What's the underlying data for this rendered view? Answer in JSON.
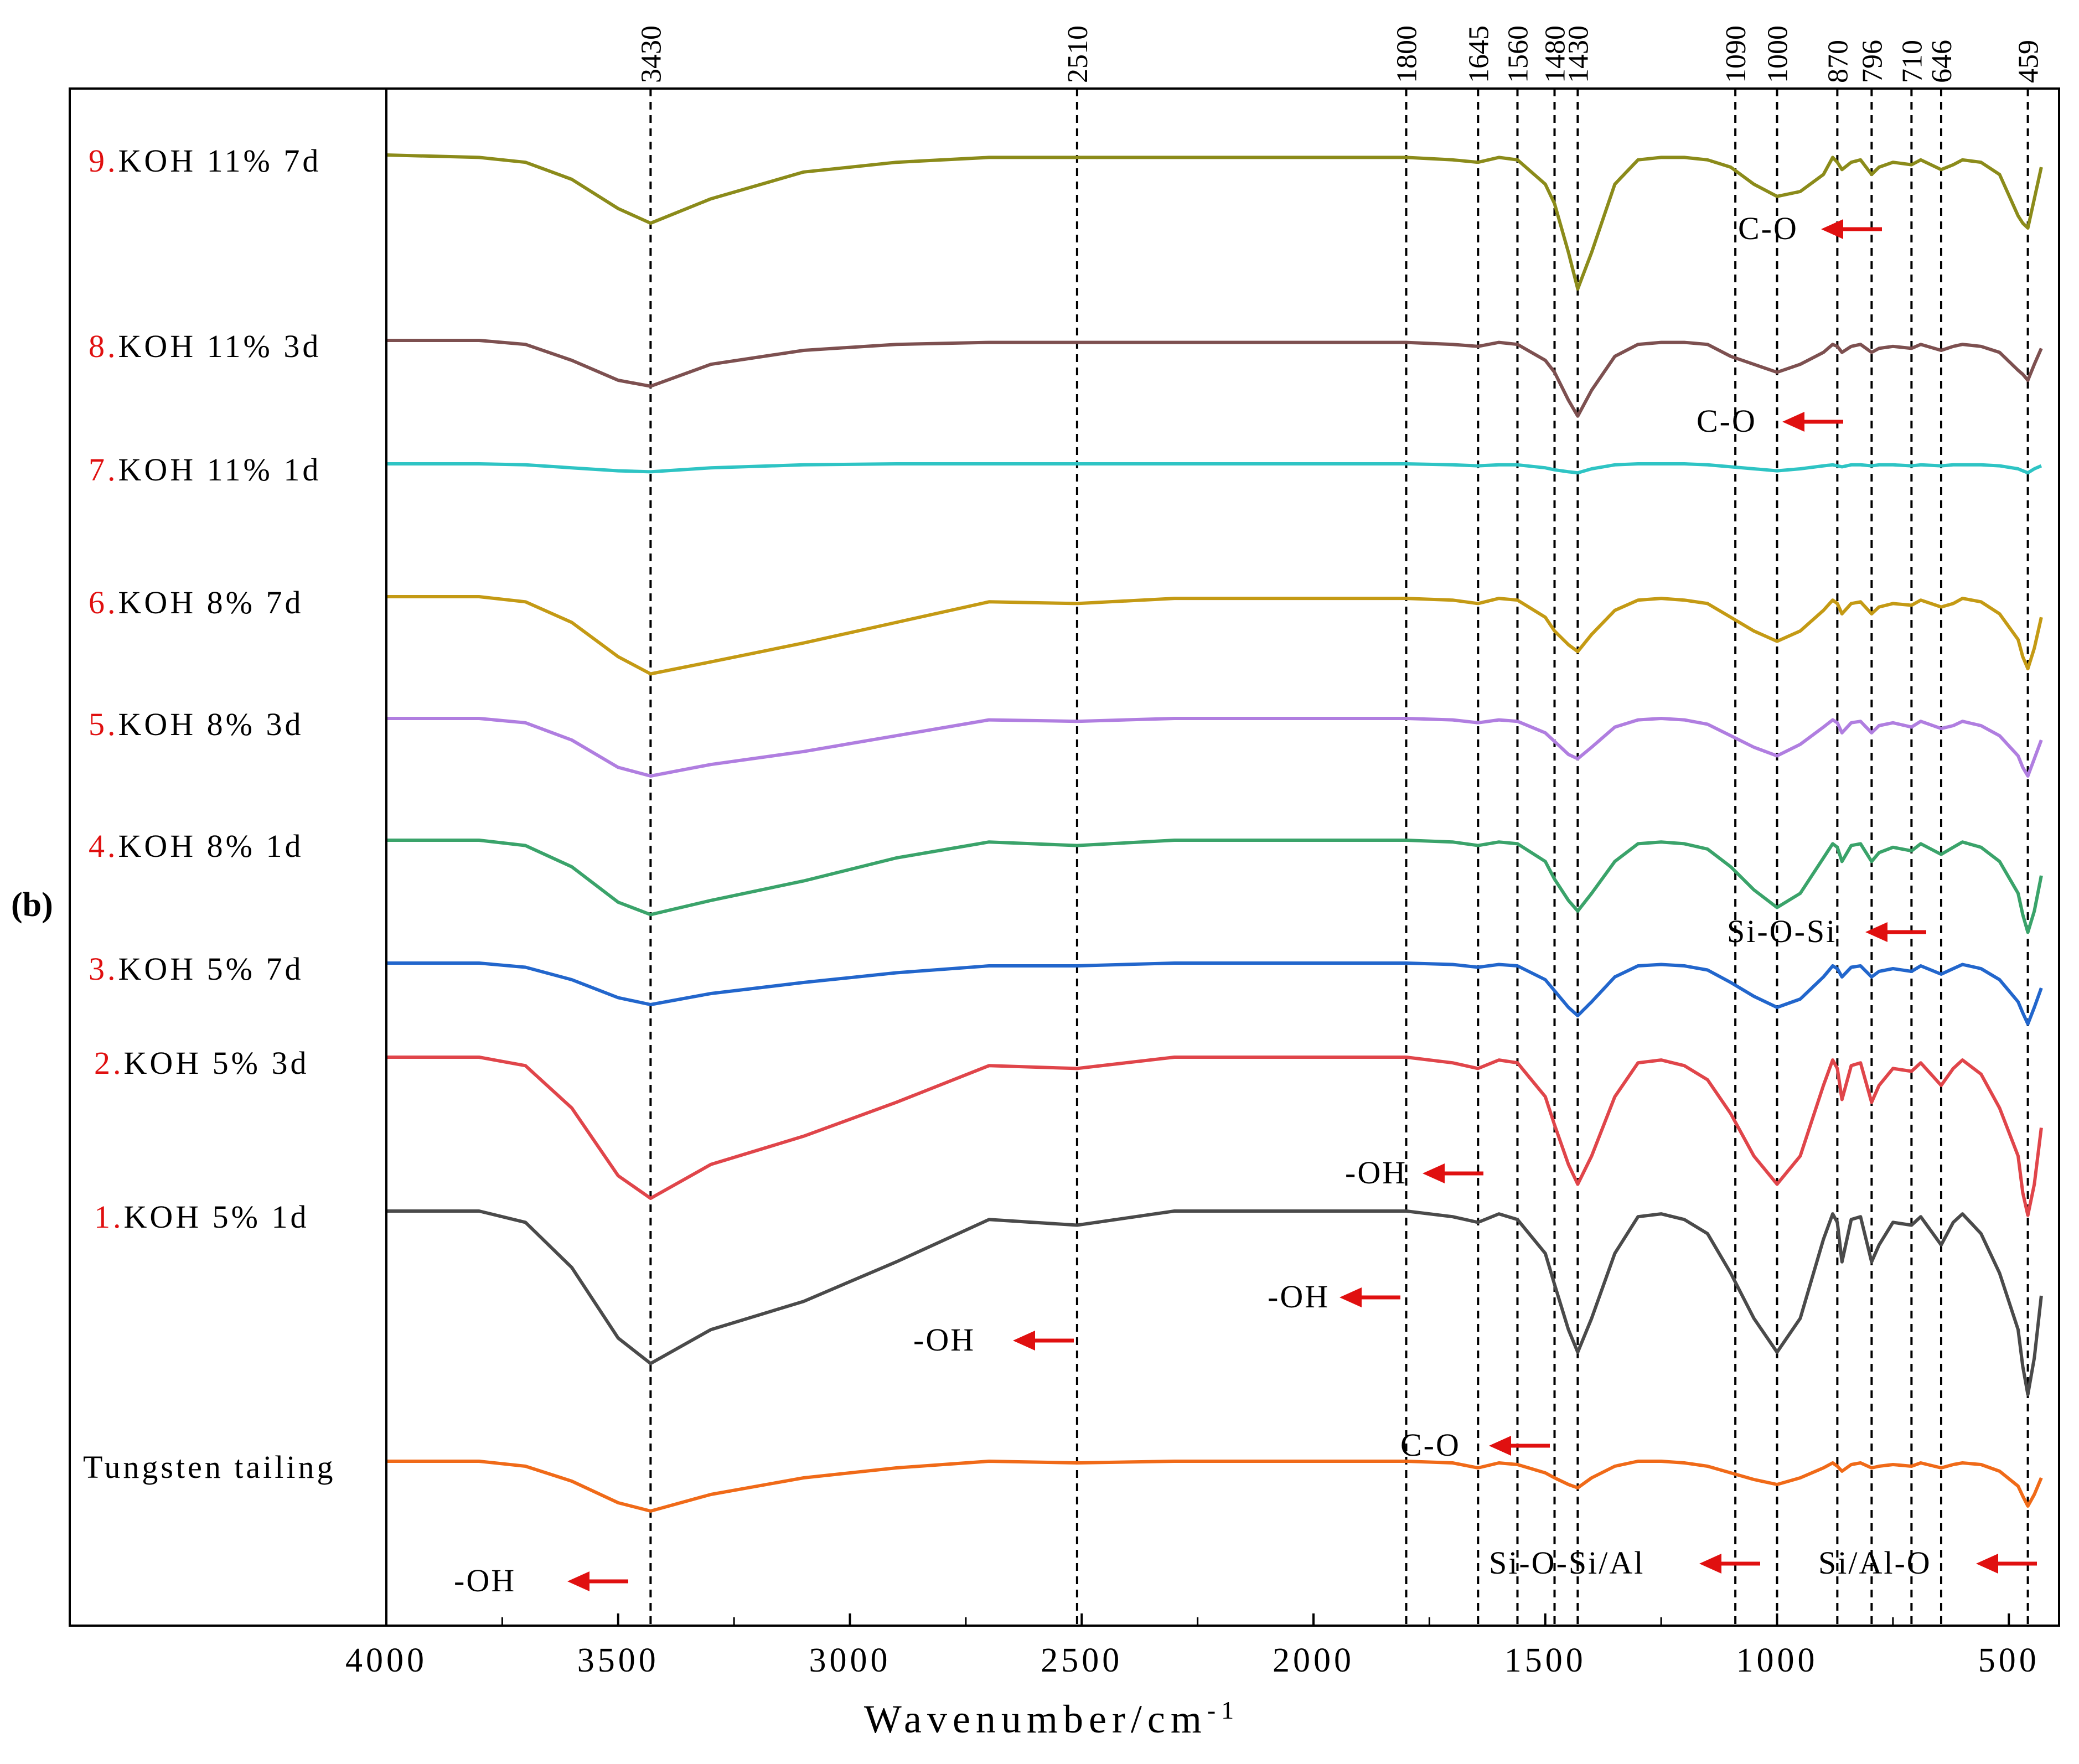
{
  "chart_data": {
    "type": "line",
    "panel_label": "(b)",
    "xlabel": "Wavenumber/cm",
    "xlabel_superscript": "-1",
    "xlim": [
      4000,
      400
    ],
    "x_ticks": [
      "4000",
      "3500",
      "3000",
      "2500",
      "2000",
      "1500",
      "1000",
      "500"
    ],
    "peak_lines": [
      "3430",
      "2510",
      "1800",
      "1645",
      "1560",
      "1480",
      "1430",
      "1090",
      "1000",
      "870",
      "796",
      "710",
      "646",
      "459"
    ],
    "series": [
      {
        "num": "9.",
        "label": "KOH 11% 7d",
        "color": "#8b8b1a",
        "x": [
          4000,
          3800,
          3700,
          3600,
          3500,
          3430,
          3300,
          3100,
          2900,
          2700,
          2510,
          2300,
          2000,
          1800,
          1700,
          1645,
          1600,
          1560,
          1500,
          1480,
          1450,
          1430,
          1400,
          1350,
          1300,
          1250,
          1200,
          1150,
          1100,
          1050,
          1000,
          950,
          900,
          880,
          870,
          860,
          840,
          820,
          796,
          780,
          750,
          710,
          690,
          646,
          620,
          600,
          560,
          520,
          480,
          470,
          459,
          445,
          430
        ],
        "y": [
          100,
          99,
          97,
          90,
          78,
          72,
          82,
          93,
          97,
          99,
          99,
          99,
          99,
          99,
          98,
          97,
          99,
          98,
          88,
          80,
          60,
          45,
          60,
          88,
          98,
          99,
          99,
          98,
          95,
          88,
          83,
          85,
          92,
          99,
          97,
          94,
          97,
          98,
          92,
          95,
          97,
          96,
          98,
          94,
          96,
          98,
          97,
          92,
          75,
          72,
          70,
          82,
          95
        ]
      },
      {
        "num": "8.",
        "label": "KOH 11% 3d",
        "color": "#7d5050",
        "x": [
          4000,
          3800,
          3700,
          3600,
          3500,
          3430,
          3300,
          3100,
          2900,
          2700,
          2510,
          2300,
          2000,
          1800,
          1700,
          1645,
          1600,
          1560,
          1500,
          1480,
          1450,
          1430,
          1400,
          1350,
          1300,
          1250,
          1200,
          1150,
          1100,
          1050,
          1000,
          950,
          900,
          880,
          870,
          860,
          840,
          820,
          796,
          780,
          750,
          710,
          690,
          646,
          620,
          600,
          560,
          520,
          480,
          470,
          459,
          445,
          430
        ],
        "y": [
          100,
          100,
          98,
          90,
          80,
          77,
          88,
          95,
          98,
          99,
          99,
          99,
          99,
          99,
          98,
          97,
          99,
          98,
          90,
          84,
          70,
          62,
          75,
          92,
          98,
          99,
          99,
          98,
          92,
          88,
          84,
          88,
          94,
          98,
          97,
          94,
          97,
          98,
          94,
          96,
          97,
          96,
          98,
          95,
          97,
          98,
          97,
          94,
          85,
          83,
          80,
          88,
          96
        ]
      },
      {
        "num": "7.",
        "label": "KOH 11% 1d",
        "color": "#2ec4c4",
        "x": [
          4000,
          3800,
          3700,
          3600,
          3500,
          3430,
          3300,
          3100,
          2900,
          2700,
          2510,
          2300,
          2000,
          1800,
          1700,
          1645,
          1600,
          1560,
          1500,
          1480,
          1450,
          1430,
          1400,
          1350,
          1300,
          1250,
          1200,
          1150,
          1100,
          1050,
          1000,
          950,
          900,
          880,
          870,
          860,
          840,
          820,
          796,
          780,
          750,
          710,
          690,
          646,
          620,
          600,
          560,
          520,
          480,
          470,
          459,
          445,
          430
        ],
        "y": [
          100,
          100,
          99,
          96,
          93,
          92,
          96,
          99,
          100,
          100,
          100,
          100,
          100,
          100,
          99,
          98,
          99,
          99,
          96,
          94,
          92,
          91,
          95,
          99,
          100,
          100,
          100,
          99,
          97,
          95,
          93,
          95,
          98,
          99,
          98,
          97,
          99,
          99,
          98,
          99,
          99,
          98,
          99,
          98,
          99,
          99,
          99,
          98,
          95,
          93,
          91,
          95,
          98
        ]
      },
      {
        "num": "6.",
        "label": "KOH 8% 7d",
        "color": "#c49a14",
        "x": [
          4000,
          3800,
          3700,
          3600,
          3500,
          3430,
          3300,
          3100,
          2900,
          2700,
          2510,
          2300,
          2000,
          1800,
          1700,
          1645,
          1600,
          1560,
          1500,
          1480,
          1450,
          1430,
          1400,
          1350,
          1300,
          1250,
          1200,
          1150,
          1100,
          1050,
          1000,
          950,
          900,
          880,
          870,
          860,
          840,
          820,
          796,
          780,
          750,
          710,
          690,
          646,
          620,
          600,
          560,
          520,
          480,
          470,
          459,
          445,
          430
        ],
        "y": [
          100,
          100,
          97,
          85,
          65,
          55,
          62,
          73,
          85,
          97,
          96,
          99,
          99,
          99,
          98,
          96,
          99,
          98,
          88,
          80,
          72,
          68,
          78,
          92,
          98,
          99,
          98,
          96,
          88,
          80,
          74,
          80,
          92,
          98,
          96,
          90,
          96,
          97,
          90,
          94,
          96,
          95,
          98,
          94,
          96,
          99,
          97,
          90,
          75,
          65,
          58,
          70,
          88
        ]
      },
      {
        "num": "5.",
        "label": "KOH 8% 3d",
        "color": "#b07ee0",
        "x": [
          4000,
          3800,
          3700,
          3600,
          3500,
          3430,
          3300,
          3100,
          2900,
          2700,
          2510,
          2300,
          2000,
          1800,
          1700,
          1645,
          1600,
          1560,
          1500,
          1480,
          1450,
          1430,
          1400,
          1350,
          1300,
          1250,
          1200,
          1150,
          1100,
          1050,
          1000,
          950,
          900,
          880,
          870,
          860,
          840,
          820,
          796,
          780,
          750,
          710,
          690,
          646,
          620,
          600,
          560,
          520,
          480,
          470,
          459,
          445,
          430
        ],
        "y": [
          100,
          100,
          97,
          85,
          66,
          60,
          68,
          77,
          88,
          99,
          98,
          100,
          100,
          100,
          99,
          97,
          99,
          98,
          90,
          84,
          75,
          72,
          80,
          94,
          99,
          100,
          99,
          96,
          88,
          80,
          74,
          82,
          94,
          99,
          97,
          90,
          97,
          98,
          90,
          95,
          97,
          94,
          98,
          93,
          95,
          98,
          95,
          88,
          74,
          66,
          60,
          72,
          85
        ]
      },
      {
        "num": "4.",
        "label": "KOH 8% 1d",
        "color": "#3aa36a",
        "x": [
          4000,
          3800,
          3700,
          3600,
          3500,
          3430,
          3300,
          3100,
          2900,
          2700,
          2510,
          2300,
          2000,
          1800,
          1700,
          1645,
          1600,
          1560,
          1500,
          1480,
          1450,
          1430,
          1400,
          1350,
          1300,
          1250,
          1200,
          1150,
          1100,
          1050,
          1000,
          950,
          900,
          880,
          870,
          860,
          840,
          820,
          796,
          780,
          750,
          710,
          690,
          646,
          620,
          600,
          560,
          520,
          480,
          470,
          459,
          445,
          430
        ],
        "y": [
          100,
          100,
          97,
          85,
          65,
          58,
          66,
          77,
          90,
          99,
          97,
          100,
          100,
          100,
          99,
          97,
          99,
          98,
          88,
          78,
          66,
          60,
          70,
          88,
          98,
          99,
          98,
          95,
          85,
          72,
          62,
          70,
          90,
          98,
          96,
          88,
          97,
          98,
          88,
          93,
          96,
          94,
          98,
          92,
          96,
          99,
          96,
          88,
          70,
          58,
          48,
          60,
          80
        ]
      },
      {
        "num": "3.",
        "label": "KOH 5% 7d",
        "color": "#2266cc",
        "x": [
          4000,
          3800,
          3700,
          3600,
          3500,
          3430,
          3300,
          3100,
          2900,
          2700,
          2510,
          2300,
          2000,
          1800,
          1700,
          1645,
          1600,
          1560,
          1500,
          1480,
          1450,
          1430,
          1400,
          1350,
          1300,
          1250,
          1200,
          1150,
          1100,
          1050,
          1000,
          950,
          900,
          880,
          870,
          860,
          840,
          820,
          796,
          780,
          750,
          710,
          690,
          646,
          620,
          600,
          560,
          520,
          480,
          470,
          459,
          445,
          430
        ],
        "y": [
          100,
          100,
          97,
          88,
          75,
          70,
          78,
          86,
          93,
          98,
          98,
          100,
          100,
          100,
          99,
          97,
          99,
          98,
          88,
          80,
          68,
          62,
          72,
          90,
          98,
          99,
          98,
          95,
          86,
          76,
          68,
          74,
          90,
          98,
          96,
          90,
          97,
          98,
          90,
          94,
          96,
          94,
          98,
          92,
          96,
          99,
          96,
          88,
          72,
          64,
          56,
          68,
          82
        ]
      },
      {
        "num": "2.",
        "label": "KOH 5% 3d",
        "color": "#e0454a",
        "x": [
          4000,
          3800,
          3700,
          3600,
          3500,
          3430,
          3300,
          3100,
          2900,
          2700,
          2510,
          2300,
          2000,
          1800,
          1700,
          1645,
          1600,
          1560,
          1500,
          1480,
          1450,
          1430,
          1400,
          1350,
          1300,
          1250,
          1200,
          1150,
          1100,
          1050,
          1000,
          950,
          900,
          880,
          870,
          860,
          840,
          820,
          796,
          780,
          750,
          710,
          690,
          646,
          620,
          600,
          560,
          520,
          480,
          470,
          459,
          445,
          430
        ],
        "y": [
          100,
          100,
          97,
          82,
          58,
          50,
          62,
          72,
          84,
          97,
          96,
          100,
          100,
          100,
          98,
          96,
          99,
          98,
          86,
          76,
          62,
          55,
          65,
          86,
          98,
          99,
          97,
          92,
          80,
          65,
          55,
          65,
          90,
          99,
          96,
          85,
          97,
          98,
          84,
          90,
          96,
          95,
          98,
          90,
          96,
          99,
          94,
          82,
          65,
          52,
          44,
          55,
          75
        ]
      },
      {
        "num": "1.",
        "label": "KOH 5% 1d",
        "color": "#4a4a4a",
        "x": [
          4000,
          3800,
          3700,
          3600,
          3500,
          3430,
          3300,
          3100,
          2900,
          2700,
          2510,
          2300,
          2000,
          1800,
          1700,
          1645,
          1600,
          1560,
          1500,
          1480,
          1450,
          1430,
          1400,
          1350,
          1300,
          1250,
          1200,
          1150,
          1100,
          1050,
          1000,
          950,
          900,
          880,
          870,
          860,
          840,
          820,
          796,
          780,
          750,
          710,
          690,
          646,
          620,
          600,
          560,
          520,
          480,
          470,
          459,
          445,
          430
        ],
        "y": [
          100,
          100,
          96,
          80,
          55,
          46,
          58,
          68,
          82,
          97,
          95,
          100,
          100,
          100,
          98,
          96,
          99,
          97,
          85,
          74,
          58,
          50,
          62,
          85,
          98,
          99,
          97,
          92,
          78,
          62,
          50,
          62,
          90,
          99,
          96,
          82,
          97,
          98,
          82,
          88,
          96,
          95,
          98,
          88,
          96,
          99,
          92,
          78,
          58,
          45,
          35,
          48,
          70
        ]
      },
      {
        "num": "",
        "label": "Tungsten tailing",
        "color": "#f06a18",
        "x": [
          4000,
          3800,
          3700,
          3600,
          3500,
          3430,
          3300,
          3100,
          2900,
          2700,
          2510,
          2300,
          2000,
          1800,
          1700,
          1645,
          1600,
          1560,
          1500,
          1480,
          1450,
          1430,
          1400,
          1350,
          1300,
          1250,
          1200,
          1150,
          1100,
          1050,
          1000,
          950,
          900,
          880,
          870,
          860,
          840,
          820,
          796,
          780,
          750,
          710,
          690,
          646,
          620,
          600,
          560,
          520,
          480,
          470,
          459,
          445,
          430
        ],
        "y": [
          100,
          100,
          97,
          88,
          75,
          70,
          80,
          90,
          96,
          100,
          99,
          100,
          100,
          100,
          99,
          96,
          99,
          98,
          93,
          90,
          86,
          84,
          90,
          97,
          100,
          100,
          99,
          97,
          93,
          89,
          86,
          90,
          96,
          99,
          97,
          94,
          98,
          99,
          96,
          97,
          98,
          97,
          99,
          96,
          98,
          99,
          98,
          94,
          85,
          79,
          73,
          80,
          90
        ]
      }
    ],
    "annotations": [
      "C-O",
      "C-O",
      "Si-O-Si",
      "-OH",
      "-OH",
      "-OH",
      "C-O",
      "-OH",
      "Si-O-Si/Al",
      "Si/Al-O"
    ]
  }
}
